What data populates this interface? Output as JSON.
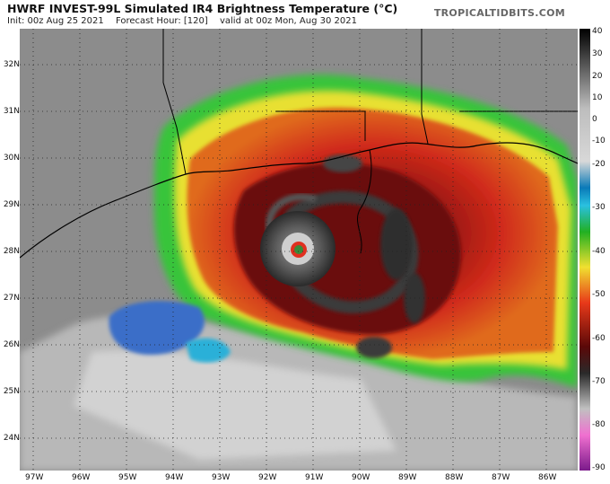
{
  "header": {
    "title": "HWRF INVEST-99L Simulated IR4 Brightness Temperature (°C)",
    "init": "Init: 00z Aug 25 2021",
    "forecast_hour": "Forecast Hour: [120]",
    "valid": "valid at 00z Mon, Aug 30 2021",
    "brand": "TROPICALTIDBITS.COM"
  },
  "axes": {
    "lat_labels": [
      "32N",
      "31N",
      "30N",
      "29N",
      "28N",
      "27N",
      "26N",
      "25N",
      "24N"
    ],
    "lon_labels": [
      "97W",
      "96W",
      "95W",
      "94W",
      "93W",
      "92W",
      "91W",
      "90W",
      "89W",
      "88W",
      "87W",
      "86W"
    ]
  },
  "colorbar": {
    "labels": [
      "40",
      "30",
      "20",
      "10",
      "0",
      "-10",
      "-20",
      "-30",
      "-40",
      "-50",
      "-60",
      "-70",
      "-80",
      "-90"
    ]
  },
  "colors": {
    "storm_red": "#c81e1e",
    "eyewall_dark": "#4a0e0e",
    "rainband_green": "#34c734",
    "outer_yellow": "#f0e030",
    "cold_cloud_gray": "#d8d8d8",
    "clear_gray": "#8a8a8a"
  }
}
